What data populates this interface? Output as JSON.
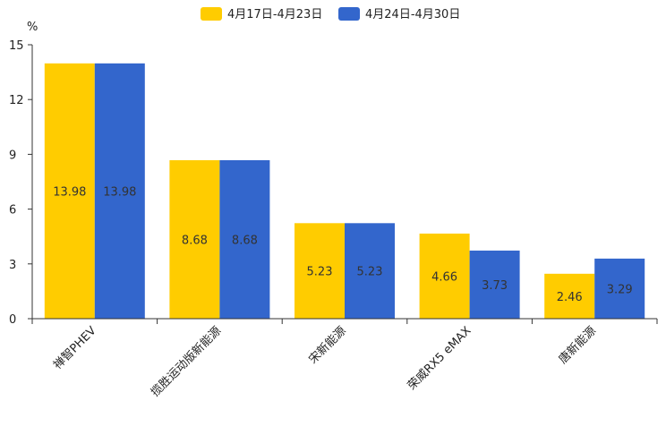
{
  "chart_data": {
    "type": "bar",
    "title": "",
    "xlabel": "",
    "ylabel": "%",
    "ylim": [
      0,
      15
    ],
    "yticks": [
      0,
      3,
      6,
      9,
      12,
      15
    ],
    "legend_position": "top-center",
    "grid": false,
    "categories": [
      "禅智PHEV",
      "揽胜运动版新能源",
      "宋新能源",
      "荣威RX5 eMAX",
      "唐新能源"
    ],
    "series": [
      {
        "name": "4月17日-4月23日",
        "color": "#ffcc00",
        "values": [
          13.98,
          8.68,
          5.23,
          4.66,
          2.46
        ]
      },
      {
        "name": "4月24日-4月30日",
        "color": "#3366cc",
        "values": [
          13.98,
          8.68,
          5.23,
          3.73,
          3.29
        ]
      }
    ]
  }
}
